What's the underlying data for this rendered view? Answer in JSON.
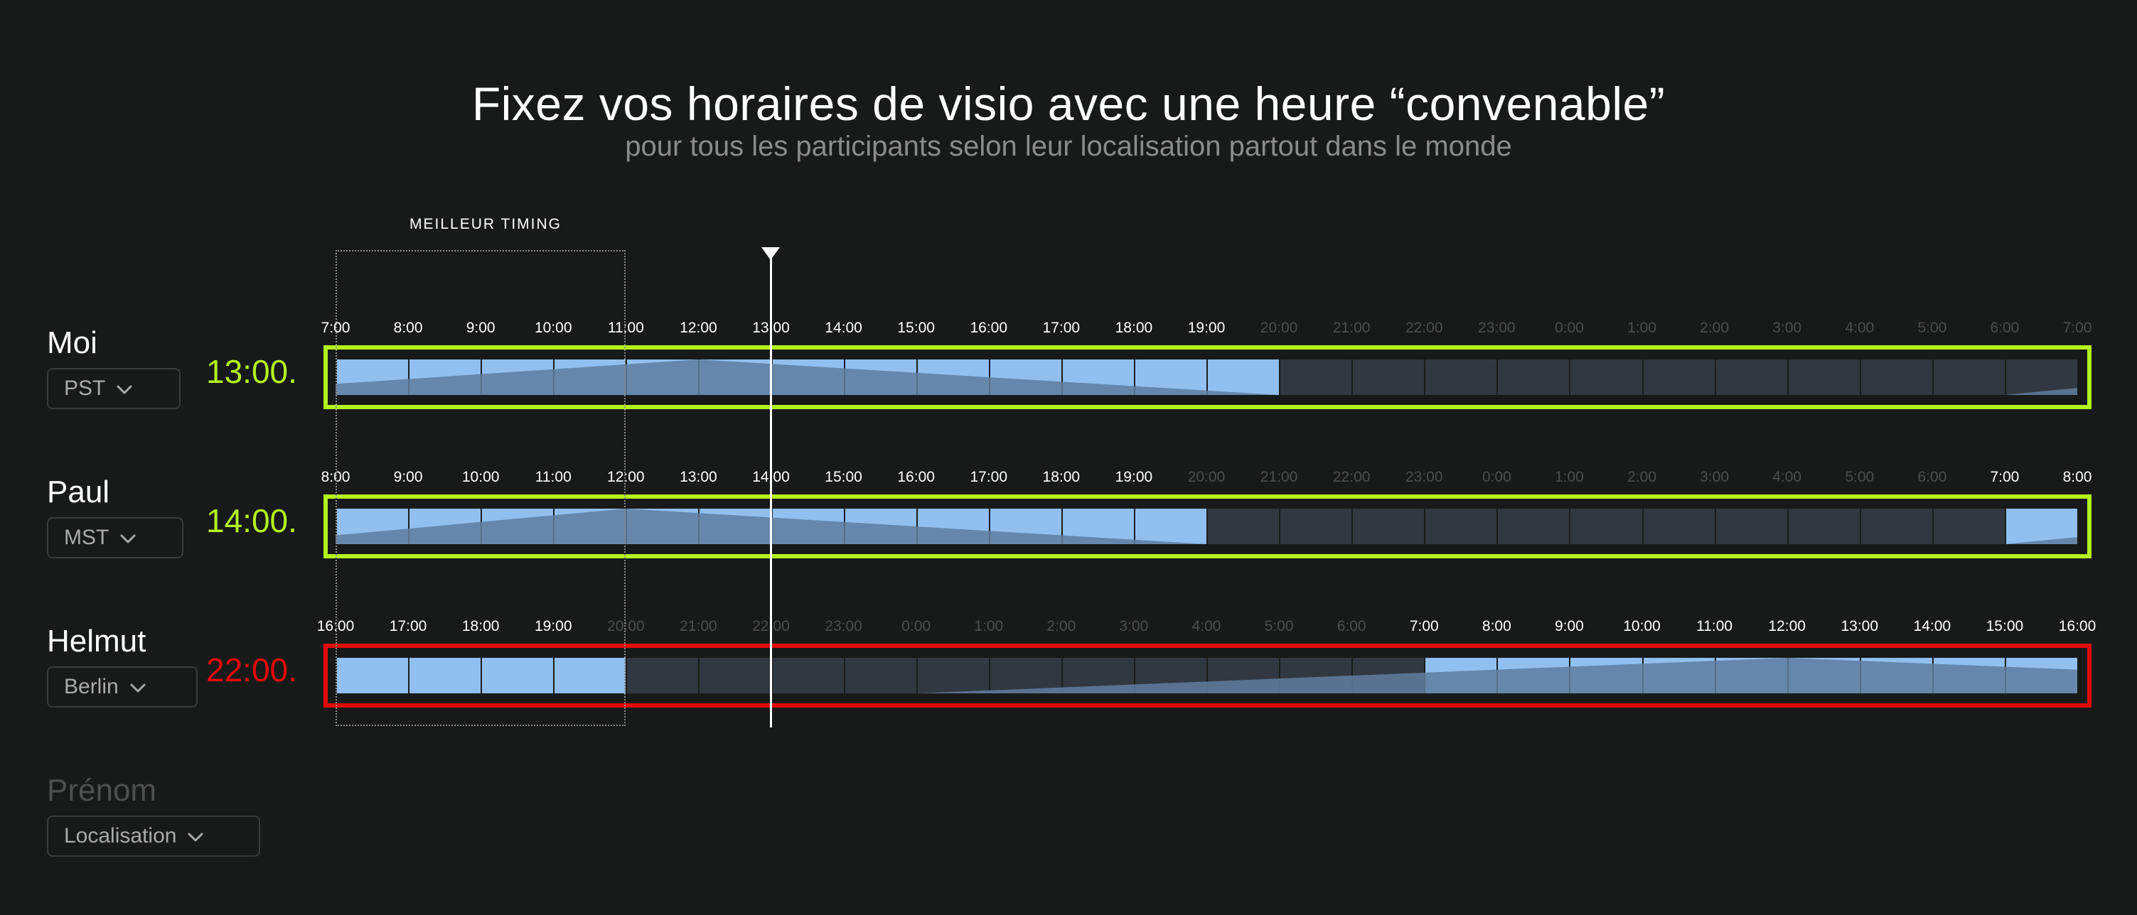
{
  "header": {
    "title": "Fixez vos horaires de visio avec une heure “convenable”",
    "subtitle": "pour tous les participants selon leur localisation partout dans le monde"
  },
  "best_timing": {
    "label": "MEILLEUR TIMING"
  },
  "colors": {
    "ok": "#b4f21e",
    "bad": "#e50909",
    "day": "#90bff0",
    "night": "#323841",
    "curve": "#5f7d9f",
    "tick_day": "#ffffff",
    "tick_night": "#4d4f4e"
  },
  "participants": [
    {
      "name": "Moi",
      "timezone": "PST",
      "time": "13:00.",
      "status": "ok",
      "peak_hour": 5,
      "ticks": [
        "7:00",
        "8:00",
        "9:00",
        "10:00",
        "11:00",
        "12:00",
        "13:00",
        "14:00",
        "15:00",
        "16:00",
        "17:00",
        "18:00",
        "19:00",
        "20:00",
        "21:00",
        "22:00",
        "23:00",
        "0:00",
        "1:00",
        "2:00",
        "3:00",
        "4:00",
        "5:00",
        "6:00",
        "7:00"
      ],
      "day_hours": [
        true,
        true,
        true,
        true,
        true,
        true,
        true,
        true,
        true,
        true,
        true,
        true,
        true,
        false,
        false,
        false,
        false,
        false,
        false,
        false,
        false,
        false,
        false,
        false
      ]
    },
    {
      "name": "Paul",
      "timezone": "MST",
      "time": "14:00.",
      "status": "ok",
      "peak_hour": 4,
      "ticks": [
        "8:00",
        "9:00",
        "10:00",
        "11:00",
        "12:00",
        "13:00",
        "14:00",
        "15:00",
        "16:00",
        "17:00",
        "18:00",
        "19:00",
        "20:00",
        "21:00",
        "22:00",
        "23:00",
        "0:00",
        "1:00",
        "2:00",
        "3:00",
        "4:00",
        "5:00",
        "6:00",
        "7:00",
        "8:00"
      ],
      "day_hours": [
        true,
        true,
        true,
        true,
        true,
        true,
        true,
        true,
        true,
        true,
        true,
        true,
        false,
        false,
        false,
        false,
        false,
        false,
        false,
        false,
        false,
        false,
        false,
        true
      ]
    },
    {
      "name": "Helmut",
      "timezone": "Berlin",
      "time": "22:00.",
      "status": "bad",
      "peak_hour": 20,
      "ticks": [
        "16:00",
        "17:00",
        "18:00",
        "19:00",
        "20:00",
        "21:00",
        "22:00",
        "23:00",
        "0:00",
        "1:00",
        "2:00",
        "3:00",
        "4:00",
        "5:00",
        "6:00",
        "7:00",
        "8:00",
        "9:00",
        "10:00",
        "11:00",
        "12:00",
        "13:00",
        "14:00",
        "15:00",
        "16:00"
      ],
      "day_hours": [
        true,
        true,
        true,
        true,
        false,
        false,
        false,
        false,
        false,
        false,
        false,
        false,
        false,
        false,
        false,
        true,
        true,
        true,
        true,
        true,
        true,
        true,
        true,
        true
      ]
    }
  ],
  "add_person": {
    "name_placeholder": "Prénom",
    "location_placeholder": "Localisation"
  }
}
